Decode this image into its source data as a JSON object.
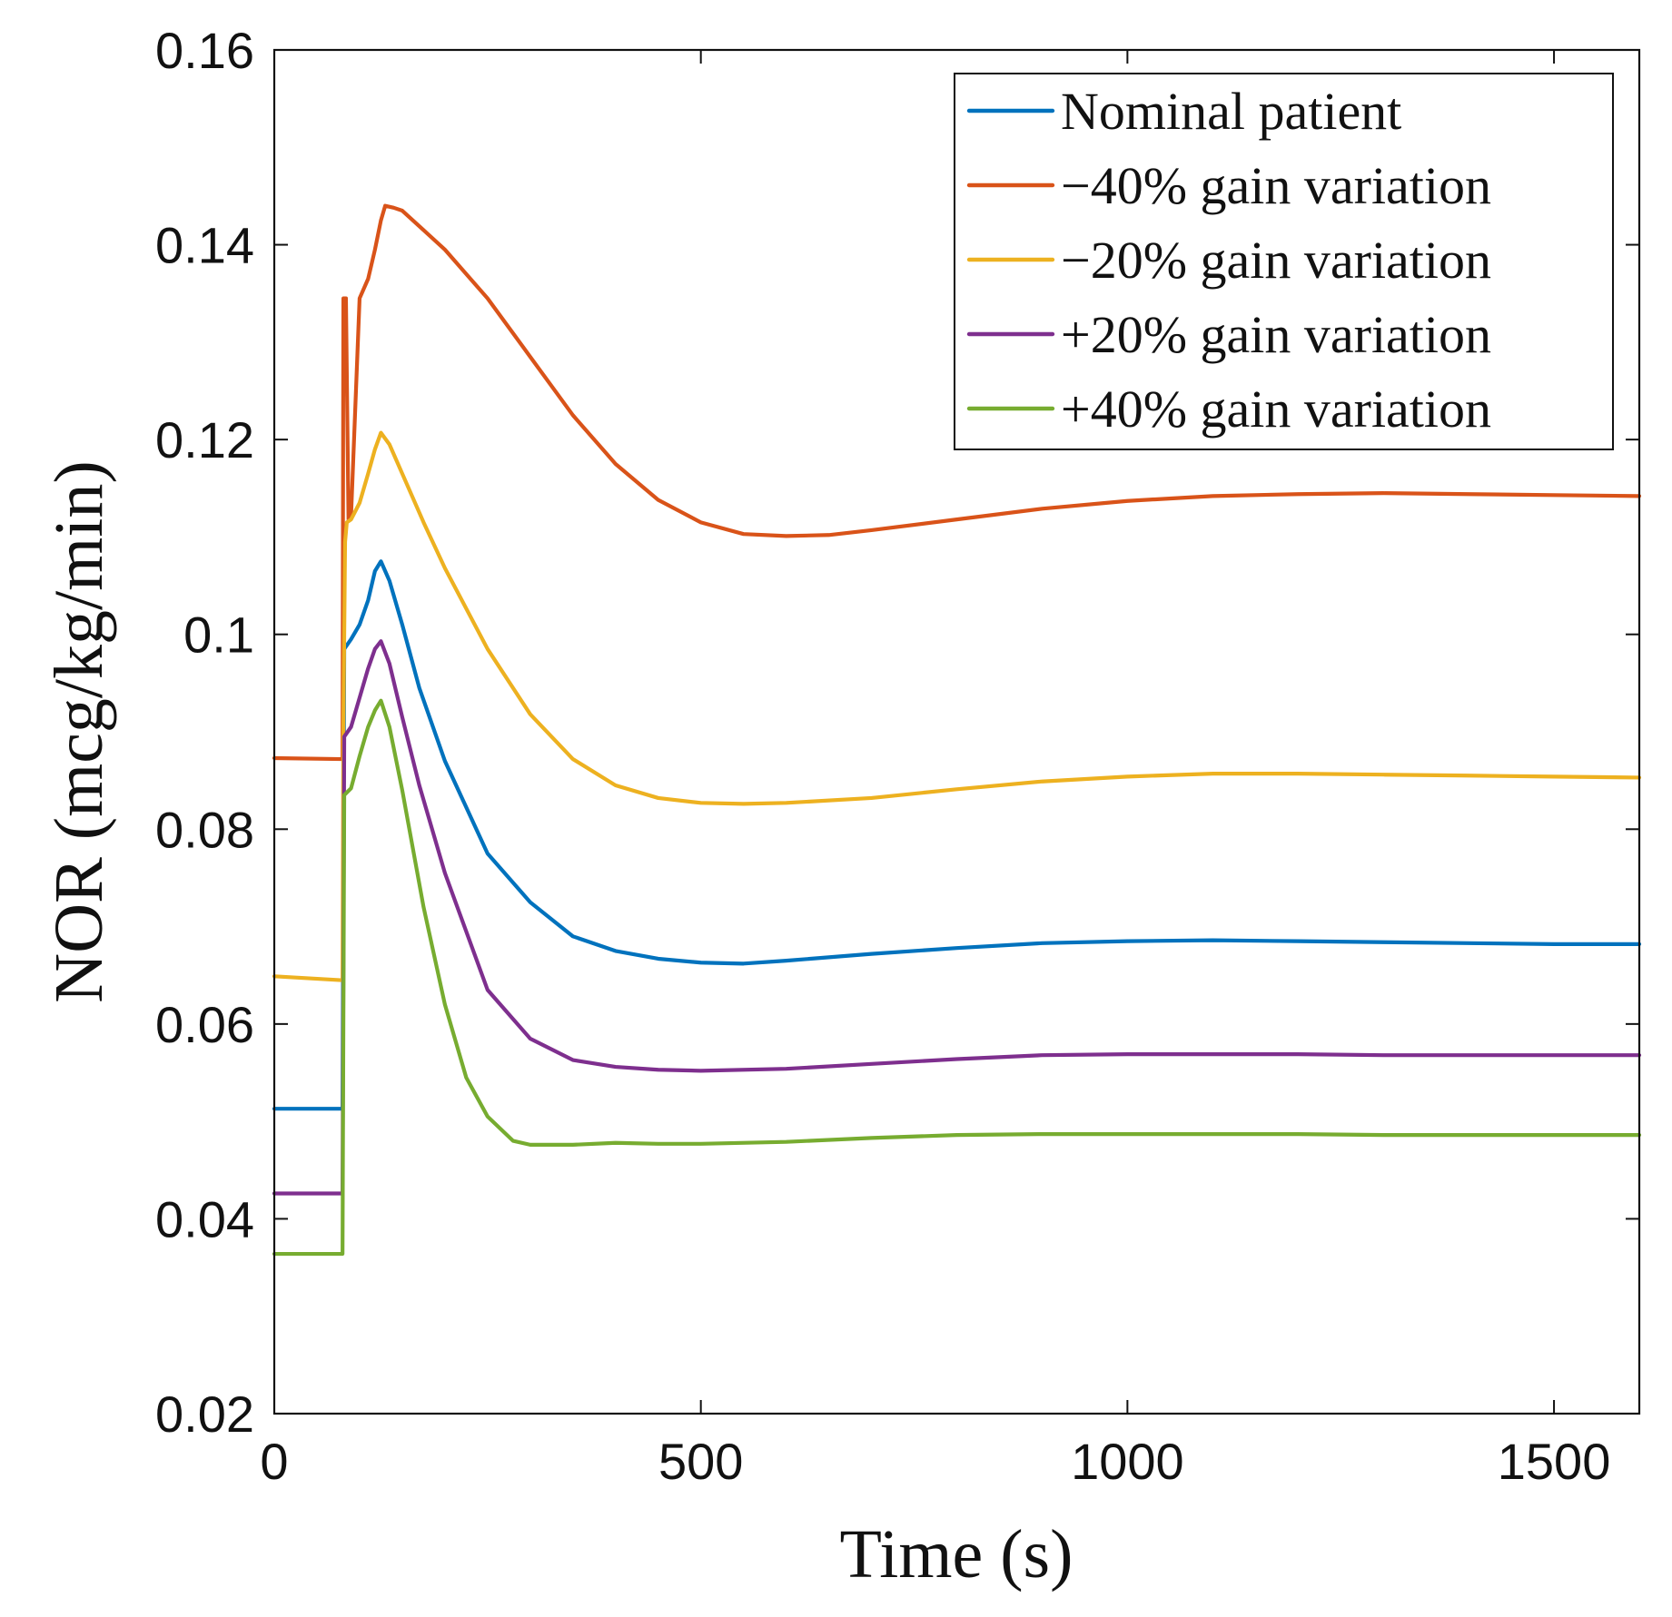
{
  "chart_data": {
    "type": "line",
    "xlabel": "Time (s)",
    "ylabel": "NOR (mcg/kg/min)",
    "xlim": [
      0,
      1600
    ],
    "ylim": [
      0.02,
      0.16
    ],
    "xticks": [
      0,
      500,
      1000,
      1500
    ],
    "xtick_labels": [
      "0",
      "500",
      "1000",
      "1500"
    ],
    "yticks": [
      0.02,
      0.04,
      0.06,
      0.08,
      0.1,
      0.12,
      0.14,
      0.16
    ],
    "ytick_labels": [
      "0.02",
      "0.04",
      "0.06",
      "0.08",
      "0.1",
      "0.12",
      "0.14",
      "0.16"
    ],
    "grid": false,
    "legend_position": "top-right",
    "series": [
      {
        "name": "Nominal patient",
        "color": "#0072BD",
        "points": [
          [
            0,
            0.0513
          ],
          [
            78,
            0.0513
          ],
          [
            80,
            0.0513
          ],
          [
            82,
            0.0985
          ],
          [
            90,
            0.0995
          ],
          [
            100,
            0.101
          ],
          [
            110,
            0.1035
          ],
          [
            118,
            0.1065
          ],
          [
            125,
            0.1075
          ],
          [
            135,
            0.1055
          ],
          [
            150,
            0.101
          ],
          [
            170,
            0.0945
          ],
          [
            200,
            0.087
          ],
          [
            250,
            0.0775
          ],
          [
            300,
            0.0725
          ],
          [
            350,
            0.069
          ],
          [
            400,
            0.0675
          ],
          [
            450,
            0.0667
          ],
          [
            500,
            0.0663
          ],
          [
            550,
            0.0662
          ],
          [
            600,
            0.0665
          ],
          [
            700,
            0.0672
          ],
          [
            800,
            0.0678
          ],
          [
            900,
            0.0683
          ],
          [
            1000,
            0.0685
          ],
          [
            1100,
            0.0686
          ],
          [
            1200,
            0.0685
          ],
          [
            1300,
            0.0684
          ],
          [
            1400,
            0.0683
          ],
          [
            1500,
            0.0682
          ],
          [
            1600,
            0.0682
          ]
        ]
      },
      {
        "name": "−40% gain variation",
        "color": "#D95319",
        "points": [
          [
            0,
            0.0873
          ],
          [
            78,
            0.0872
          ],
          [
            80,
            0.0872
          ],
          [
            81,
            0.1345
          ],
          [
            84,
            0.1345
          ],
          [
            87,
            0.1118
          ],
          [
            90,
            0.1122
          ],
          [
            100,
            0.1345
          ],
          [
            110,
            0.1365
          ],
          [
            118,
            0.1395
          ],
          [
            125,
            0.1425
          ],
          [
            130,
            0.144
          ],
          [
            140,
            0.1438
          ],
          [
            150,
            0.1435
          ],
          [
            175,
            0.1415
          ],
          [
            200,
            0.1395
          ],
          [
            250,
            0.1345
          ],
          [
            300,
            0.1285
          ],
          [
            350,
            0.1225
          ],
          [
            400,
            0.1175
          ],
          [
            450,
            0.1138
          ],
          [
            500,
            0.1115
          ],
          [
            550,
            0.1103
          ],
          [
            600,
            0.1101
          ],
          [
            650,
            0.1102
          ],
          [
            700,
            0.1107
          ],
          [
            800,
            0.1118
          ],
          [
            900,
            0.1129
          ],
          [
            1000,
            0.1137
          ],
          [
            1100,
            0.1142
          ],
          [
            1200,
            0.1144
          ],
          [
            1300,
            0.1145
          ],
          [
            1400,
            0.1144
          ],
          [
            1500,
            0.1143
          ],
          [
            1600,
            0.1142
          ]
        ]
      },
      {
        "name": "−20% gain variation",
        "color": "#EDB120",
        "points": [
          [
            0,
            0.0649
          ],
          [
            78,
            0.0645
          ],
          [
            80,
            0.0645
          ],
          [
            81,
            0.0905
          ],
          [
            83,
            0.1095
          ],
          [
            85,
            0.1115
          ],
          [
            90,
            0.1118
          ],
          [
            100,
            0.1135
          ],
          [
            110,
            0.1165
          ],
          [
            118,
            0.119
          ],
          [
            125,
            0.1207
          ],
          [
            135,
            0.1195
          ],
          [
            150,
            0.1165
          ],
          [
            175,
            0.1115
          ],
          [
            200,
            0.1068
          ],
          [
            250,
            0.0985
          ],
          [
            300,
            0.0918
          ],
          [
            350,
            0.0872
          ],
          [
            400,
            0.0845
          ],
          [
            450,
            0.0832
          ],
          [
            500,
            0.0827
          ],
          [
            550,
            0.0826
          ],
          [
            600,
            0.0827
          ],
          [
            700,
            0.0832
          ],
          [
            800,
            0.0841
          ],
          [
            900,
            0.0849
          ],
          [
            1000,
            0.0854
          ],
          [
            1100,
            0.0857
          ],
          [
            1200,
            0.0857
          ],
          [
            1300,
            0.0856
          ],
          [
            1400,
            0.0855
          ],
          [
            1500,
            0.0854
          ],
          [
            1600,
            0.0853
          ]
        ]
      },
      {
        "name": "+20% gain variation",
        "color": "#7E2F8E",
        "points": [
          [
            0,
            0.0426
          ],
          [
            78,
            0.0426
          ],
          [
            80,
            0.0426
          ],
          [
            82,
            0.0895
          ],
          [
            90,
            0.0905
          ],
          [
            100,
            0.0935
          ],
          [
            110,
            0.0965
          ],
          [
            118,
            0.0985
          ],
          [
            125,
            0.0993
          ],
          [
            135,
            0.097
          ],
          [
            150,
            0.0915
          ],
          [
            170,
            0.0845
          ],
          [
            200,
            0.0755
          ],
          [
            250,
            0.0635
          ],
          [
            300,
            0.0585
          ],
          [
            350,
            0.0563
          ],
          [
            400,
            0.0556
          ],
          [
            450,
            0.0553
          ],
          [
            500,
            0.0552
          ],
          [
            600,
            0.0554
          ],
          [
            700,
            0.0559
          ],
          [
            800,
            0.0564
          ],
          [
            900,
            0.0568
          ],
          [
            1000,
            0.0569
          ],
          [
            1100,
            0.0569
          ],
          [
            1200,
            0.0569
          ],
          [
            1300,
            0.0568
          ],
          [
            1400,
            0.0568
          ],
          [
            1500,
            0.0568
          ],
          [
            1600,
            0.0568
          ]
        ]
      },
      {
        "name": "+40% gain variation",
        "color": "#77AC30",
        "points": [
          [
            0,
            0.0364
          ],
          [
            78,
            0.0364
          ],
          [
            80,
            0.0364
          ],
          [
            82,
            0.0835
          ],
          [
            90,
            0.0842
          ],
          [
            100,
            0.0875
          ],
          [
            110,
            0.0905
          ],
          [
            118,
            0.0922
          ],
          [
            125,
            0.0932
          ],
          [
            135,
            0.0905
          ],
          [
            150,
            0.084
          ],
          [
            175,
            0.072
          ],
          [
            200,
            0.062
          ],
          [
            225,
            0.0545
          ],
          [
            250,
            0.0505
          ],
          [
            280,
            0.048
          ],
          [
            300,
            0.0476
          ],
          [
            350,
            0.0476
          ],
          [
            400,
            0.0478
          ],
          [
            450,
            0.0477
          ],
          [
            500,
            0.0477
          ],
          [
            600,
            0.0479
          ],
          [
            700,
            0.0483
          ],
          [
            800,
            0.0486
          ],
          [
            900,
            0.0487
          ],
          [
            1000,
            0.0487
          ],
          [
            1100,
            0.0487
          ],
          [
            1200,
            0.0487
          ],
          [
            1300,
            0.0486
          ],
          [
            1400,
            0.0486
          ],
          [
            1500,
            0.0486
          ],
          [
            1600,
            0.0486
          ]
        ]
      }
    ]
  }
}
